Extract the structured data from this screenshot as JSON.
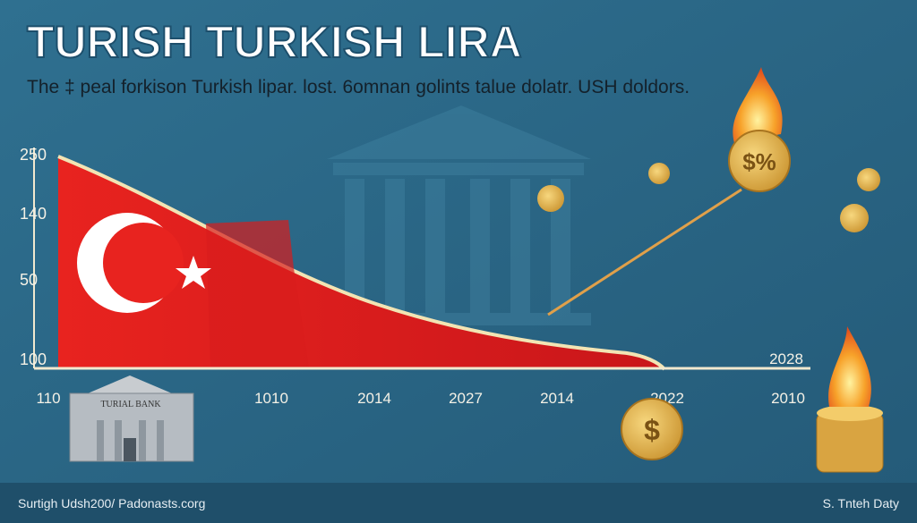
{
  "header": {
    "title": "TURISH TURKISH LIRA",
    "subtitle": "The ‡ peal forkison Turkish lipar. lost. 6omnan golints talue dolatr. USH doldors."
  },
  "axis": {
    "y_labels": [
      "250",
      "140",
      "50",
      "100"
    ],
    "x_labels": [
      "110",
      "1010",
      "2014",
      "2027",
      "2014",
      "2022",
      "2010"
    ],
    "marker_label": "2028"
  },
  "bank": {
    "sign": "TURIAL BANK"
  },
  "footer": {
    "left": "Surtigh Udsh200/ Padonasts.corg",
    "right": "S. Tnteh Daty"
  }
}
